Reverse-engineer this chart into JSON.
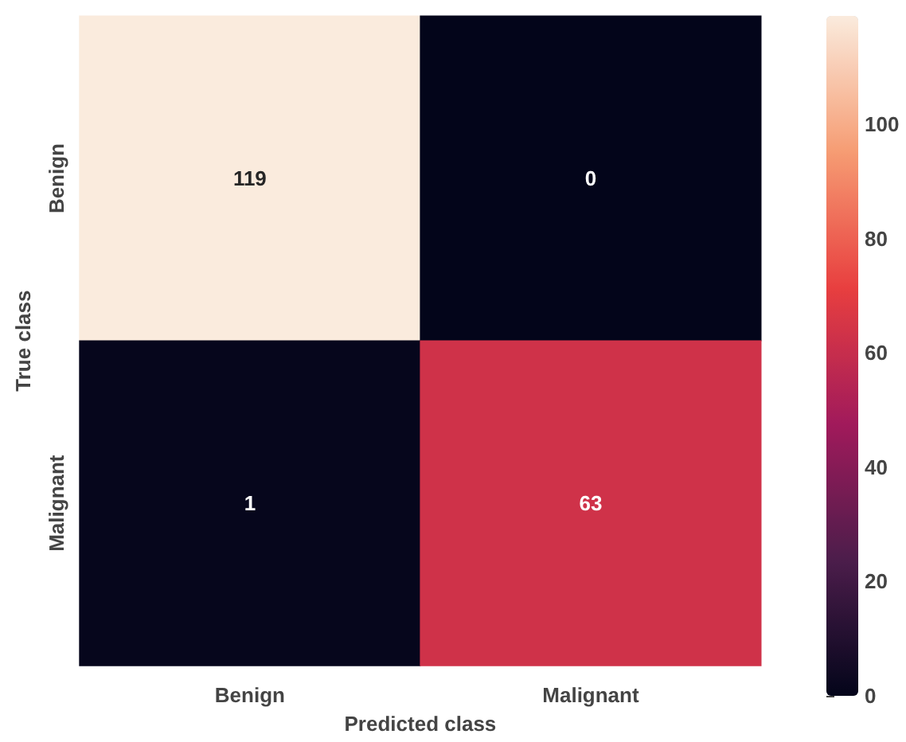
{
  "chart_data": {
    "type": "heatmap",
    "xlabel": "Predicted class",
    "ylabel": "True class",
    "categories": [
      "Benign",
      "Malignant"
    ],
    "y_categories": [
      "Benign",
      "Malignant"
    ],
    "cells": [
      [
        119,
        0
      ],
      [
        1,
        63
      ]
    ],
    "data_labels": true,
    "clim": [
      0,
      119
    ],
    "cticks": [
      0,
      20,
      40,
      60,
      80,
      100
    ]
  }
}
